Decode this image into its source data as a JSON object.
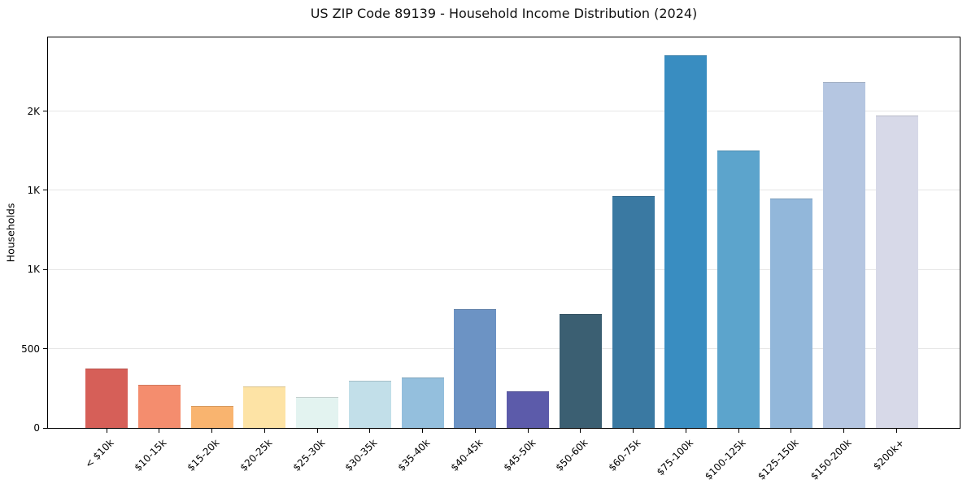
{
  "header": {
    "title": "US ZIP Code 89139 - Household Income Distribution (2024)"
  },
  "chart_data": {
    "type": "bar",
    "title": "US ZIP Code 89139 - Household Income Distribution (2024)",
    "xlabel": "",
    "ylabel": "Households",
    "ylim": [
      0,
      2465
    ],
    "grid": "horizontal",
    "legend_position": "none",
    "background_color": "#ffffff",
    "grid_color": "#e6e6e6",
    "axis_color": "#000000",
    "yticks": [
      {
        "value": 0,
        "label": "0"
      },
      {
        "value": 500,
        "label": "500"
      },
      {
        "value": 1000,
        "label": "1K"
      },
      {
        "value": 1500,
        "label": "1K"
      },
      {
        "value": 2000,
        "label": "2K"
      }
    ],
    "categories": [
      "< $10k",
      "$10-15k",
      "$15-20k",
      "$20-25k",
      "$25-30k",
      "$30-35k",
      "$35-40k",
      "$40-45k",
      "$45-50k",
      "$50-60k",
      "$60-75k",
      "$75-100k",
      "$100-125k",
      "$125-150k",
      "$150-200k",
      "$200k+"
    ],
    "values": [
      375,
      270,
      140,
      260,
      195,
      300,
      320,
      750,
      230,
      720,
      1465,
      2350,
      1750,
      1450,
      2185,
      1970
    ],
    "bar_colors": [
      "#d65f58",
      "#f48d6e",
      "#f9b46f",
      "#fde3a5",
      "#e3f3f0",
      "#c2dfe9",
      "#94bfdd",
      "#6c93c4",
      "#5c5baa",
      "#3b5f72",
      "#3a79a2",
      "#398dc1",
      "#5ca4cc",
      "#92b7da",
      "#b5c6e1",
      "#d7d9e8"
    ]
  }
}
